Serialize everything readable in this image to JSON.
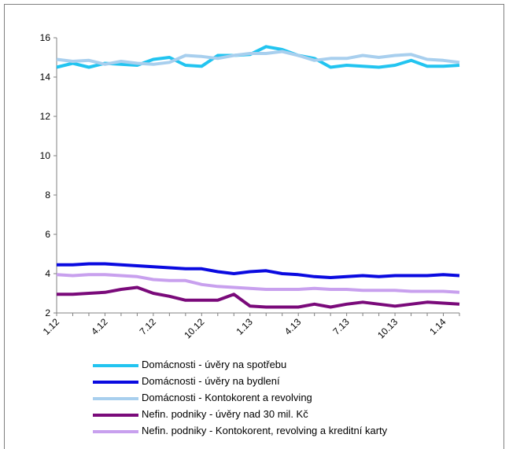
{
  "chart_data": {
    "type": "line",
    "x": [
      "1.12",
      "2.12",
      "3.12",
      "4.12",
      "5.12",
      "6.12",
      "7.12",
      "8.12",
      "9.12",
      "10.12",
      "11.12",
      "12.12",
      "1.13",
      "2.13",
      "3.13",
      "4.13",
      "5.13",
      "6.13",
      "7.13",
      "8.13",
      "9.13",
      "10.13",
      "11.13",
      "12.13",
      "1.14",
      "2.14"
    ],
    "xticks": [
      "1.12",
      "4.12",
      "7.12",
      "10.12",
      "1.13",
      "4.13",
      "7.13",
      "10.13",
      "1.14"
    ],
    "ylim": [
      2,
      16
    ],
    "yticks": [
      2,
      4,
      6,
      8,
      10,
      12,
      14,
      16
    ],
    "grid": false,
    "legend_position": "bottom",
    "series": [
      {
        "name": "Domácnosti - úvěry na spotřebu",
        "color": "#22c4f0",
        "values": [
          14.5,
          14.7,
          14.5,
          14.7,
          14.65,
          14.6,
          14.9,
          15.0,
          14.6,
          14.55,
          15.1,
          15.1,
          15.15,
          15.55,
          15.4,
          15.1,
          14.95,
          14.5,
          14.6,
          14.55,
          14.5,
          14.6,
          14.85,
          14.55,
          14.55,
          14.6
        ]
      },
      {
        "name": "Domácnosti - úvěry na bydlení",
        "color": "#0a0ae0",
        "values": [
          4.45,
          4.45,
          4.5,
          4.5,
          4.45,
          4.4,
          4.35,
          4.3,
          4.25,
          4.25,
          4.1,
          4.0,
          4.1,
          4.15,
          4.0,
          3.95,
          3.85,
          3.8,
          3.85,
          3.9,
          3.85,
          3.9,
          3.9,
          3.9,
          3.95,
          3.9
        ]
      },
      {
        "name": "Domácnosti - Kontokorent a revolving",
        "color": "#a8cfee",
        "values": [
          14.9,
          14.8,
          14.85,
          14.65,
          14.8,
          14.7,
          14.65,
          14.75,
          15.1,
          15.05,
          14.95,
          15.1,
          15.2,
          15.2,
          15.3,
          15.1,
          14.85,
          14.95,
          14.95,
          15.1,
          15.0,
          15.1,
          15.15,
          14.9,
          14.85,
          14.75
        ]
      },
      {
        "name": "Nefin. podniky - úvěry nad 30 mil. Kč",
        "color": "#7a0a7a",
        "values": [
          2.95,
          2.95,
          3.0,
          3.05,
          3.2,
          3.3,
          3.0,
          2.85,
          2.65,
          2.65,
          2.65,
          2.95,
          2.35,
          2.3,
          2.3,
          2.3,
          2.45,
          2.3,
          2.45,
          2.55,
          2.45,
          2.35,
          2.45,
          2.55,
          2.5,
          2.45
        ]
      },
      {
        "name": "Nefin. podniky - Kontokorent, revolving a kreditní karty",
        "color": "#c8a0ee",
        "values": [
          3.95,
          3.9,
          3.95,
          3.95,
          3.9,
          3.85,
          3.7,
          3.65,
          3.65,
          3.45,
          3.35,
          3.3,
          3.25,
          3.2,
          3.2,
          3.2,
          3.25,
          3.2,
          3.2,
          3.15,
          3.15,
          3.15,
          3.1,
          3.1,
          3.1,
          3.05
        ]
      }
    ]
  }
}
